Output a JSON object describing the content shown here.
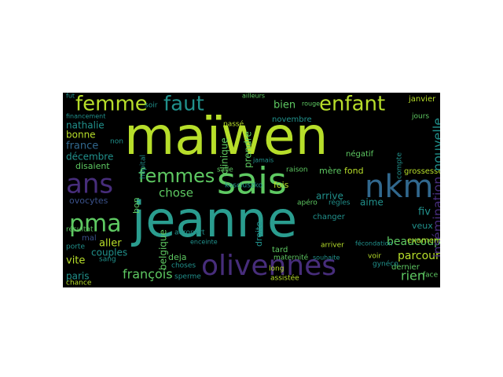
{
  "colors": {
    "background": "#000000",
    "page": "#ffffff",
    "palette": {
      "lime": "#b7de2a",
      "green": "#5ec962",
      "teal": "#21918c",
      "aqua": "#2a9d8f",
      "blue": "#3b528b",
      "indigo": "#31688e",
      "purple": "#472d7b",
      "violet": "#440154"
    }
  },
  "words": [
    {
      "text": "maïwen",
      "color": "lime"
    },
    {
      "text": "jeanne",
      "color": "aqua"
    },
    {
      "text": "sais",
      "color": "green"
    },
    {
      "text": "nkm",
      "color": "indigo"
    },
    {
      "text": "olivennes",
      "color": "purple"
    },
    {
      "text": "femme",
      "color": "lime"
    },
    {
      "text": "faut",
      "color": "teal"
    },
    {
      "text": "enfant",
      "color": "lime"
    },
    {
      "text": "femmes",
      "color": "green"
    },
    {
      "text": "ans",
      "color": "purple"
    },
    {
      "text": "pma",
      "color": "green"
    },
    {
      "text": "insémination",
      "color": "purple"
    },
    {
      "text": "nouvelle",
      "color": "teal"
    },
    {
      "text": "beaucoup",
      "color": "green"
    },
    {
      "text": "parcours",
      "color": "lime"
    },
    {
      "text": "françois",
      "color": "green"
    },
    {
      "text": "rien",
      "color": "green"
    },
    {
      "text": "chose",
      "color": "green"
    },
    {
      "text": "nathalie",
      "color": "teal"
    },
    {
      "text": "france",
      "color": "indigo"
    },
    {
      "text": "bien",
      "color": "green"
    },
    {
      "text": "bonne",
      "color": "lime"
    },
    {
      "text": "décembre",
      "color": "teal"
    },
    {
      "text": "disaient",
      "color": "green"
    },
    {
      "text": "ovocytes",
      "color": "blue"
    },
    {
      "text": "aller",
      "color": "lime"
    },
    {
      "text": "couples",
      "color": "teal"
    },
    {
      "text": "vite",
      "color": "lime"
    },
    {
      "text": "paris",
      "color": "teal"
    },
    {
      "text": "belgique",
      "color": "green"
    },
    {
      "text": "fiv",
      "color": "teal"
    },
    {
      "text": "aime",
      "color": "teal"
    },
    {
      "text": "veux",
      "color": "teal"
    },
    {
      "text": "arrive",
      "color": "teal"
    },
    {
      "text": "dernier",
      "color": "green"
    },
    {
      "text": "examens",
      "color": "lime"
    },
    {
      "text": "fois",
      "color": "lime"
    },
    {
      "text": "mère",
      "color": "green"
    },
    {
      "text": "fond",
      "color": "lime"
    },
    {
      "text": "prendre",
      "color": "green"
    },
    {
      "text": "clinique",
      "color": "green"
    },
    {
      "text": "janvier",
      "color": "lime"
    },
    {
      "text": "négatif",
      "color": "green"
    },
    {
      "text": "novembre",
      "color": "teal"
    },
    {
      "text": "grossesse",
      "color": "lime"
    },
    {
      "text": "bon",
      "color": "green"
    },
    {
      "text": "deja",
      "color": "green"
    },
    {
      "text": "droite",
      "color": "teal"
    },
    {
      "text": "mal",
      "color": "blue"
    },
    {
      "text": "sang",
      "color": "teal"
    },
    {
      "text": "porte",
      "color": "teal"
    },
    {
      "text": "résultat",
      "color": "green"
    },
    {
      "text": "aéroport",
      "color": "teal"
    },
    {
      "text": "kosciuszko",
      "color": "teal"
    },
    {
      "text": "raison",
      "color": "green"
    },
    {
      "text": "long",
      "color": "lime"
    },
    {
      "text": "tard",
      "color": "green"
    },
    {
      "text": "sperme",
      "color": "teal"
    },
    {
      "text": "choses",
      "color": "teal"
    },
    {
      "text": "assistée",
      "color": "lime"
    },
    {
      "text": "voir",
      "color": "lime"
    },
    {
      "text": "face",
      "color": "green"
    },
    {
      "text": "hôpital",
      "color": "teal"
    },
    {
      "text": "non",
      "color": "teal"
    },
    {
      "text": "fut",
      "color": "teal"
    },
    {
      "text": "soir",
      "color": "teal"
    },
    {
      "text": "jours",
      "color": "green"
    },
    {
      "text": "chance",
      "color": "lime"
    },
    {
      "text": "apéro",
      "color": "green"
    },
    {
      "text": "maternité",
      "color": "green"
    },
    {
      "text": "règles",
      "color": "teal"
    },
    {
      "text": "compte",
      "color": "teal"
    },
    {
      "text": "changer",
      "color": "teal"
    },
    {
      "text": "arriver",
      "color": "lime"
    },
    {
      "text": "gynéco",
      "color": "teal"
    },
    {
      "text": "salle",
      "color": "green"
    },
    {
      "text": "passé",
      "color": "lime"
    },
    {
      "text": "jamais",
      "color": "teal"
    },
    {
      "text": "fécondation",
      "color": "teal"
    },
    {
      "text": "financement",
      "color": "teal"
    },
    {
      "text": "enceinte",
      "color": "teal"
    },
    {
      "text": "ailleurs",
      "color": "green"
    },
    {
      "text": "rouge",
      "color": "green"
    },
    {
      "text": "souhaite",
      "color": "teal"
    }
  ]
}
